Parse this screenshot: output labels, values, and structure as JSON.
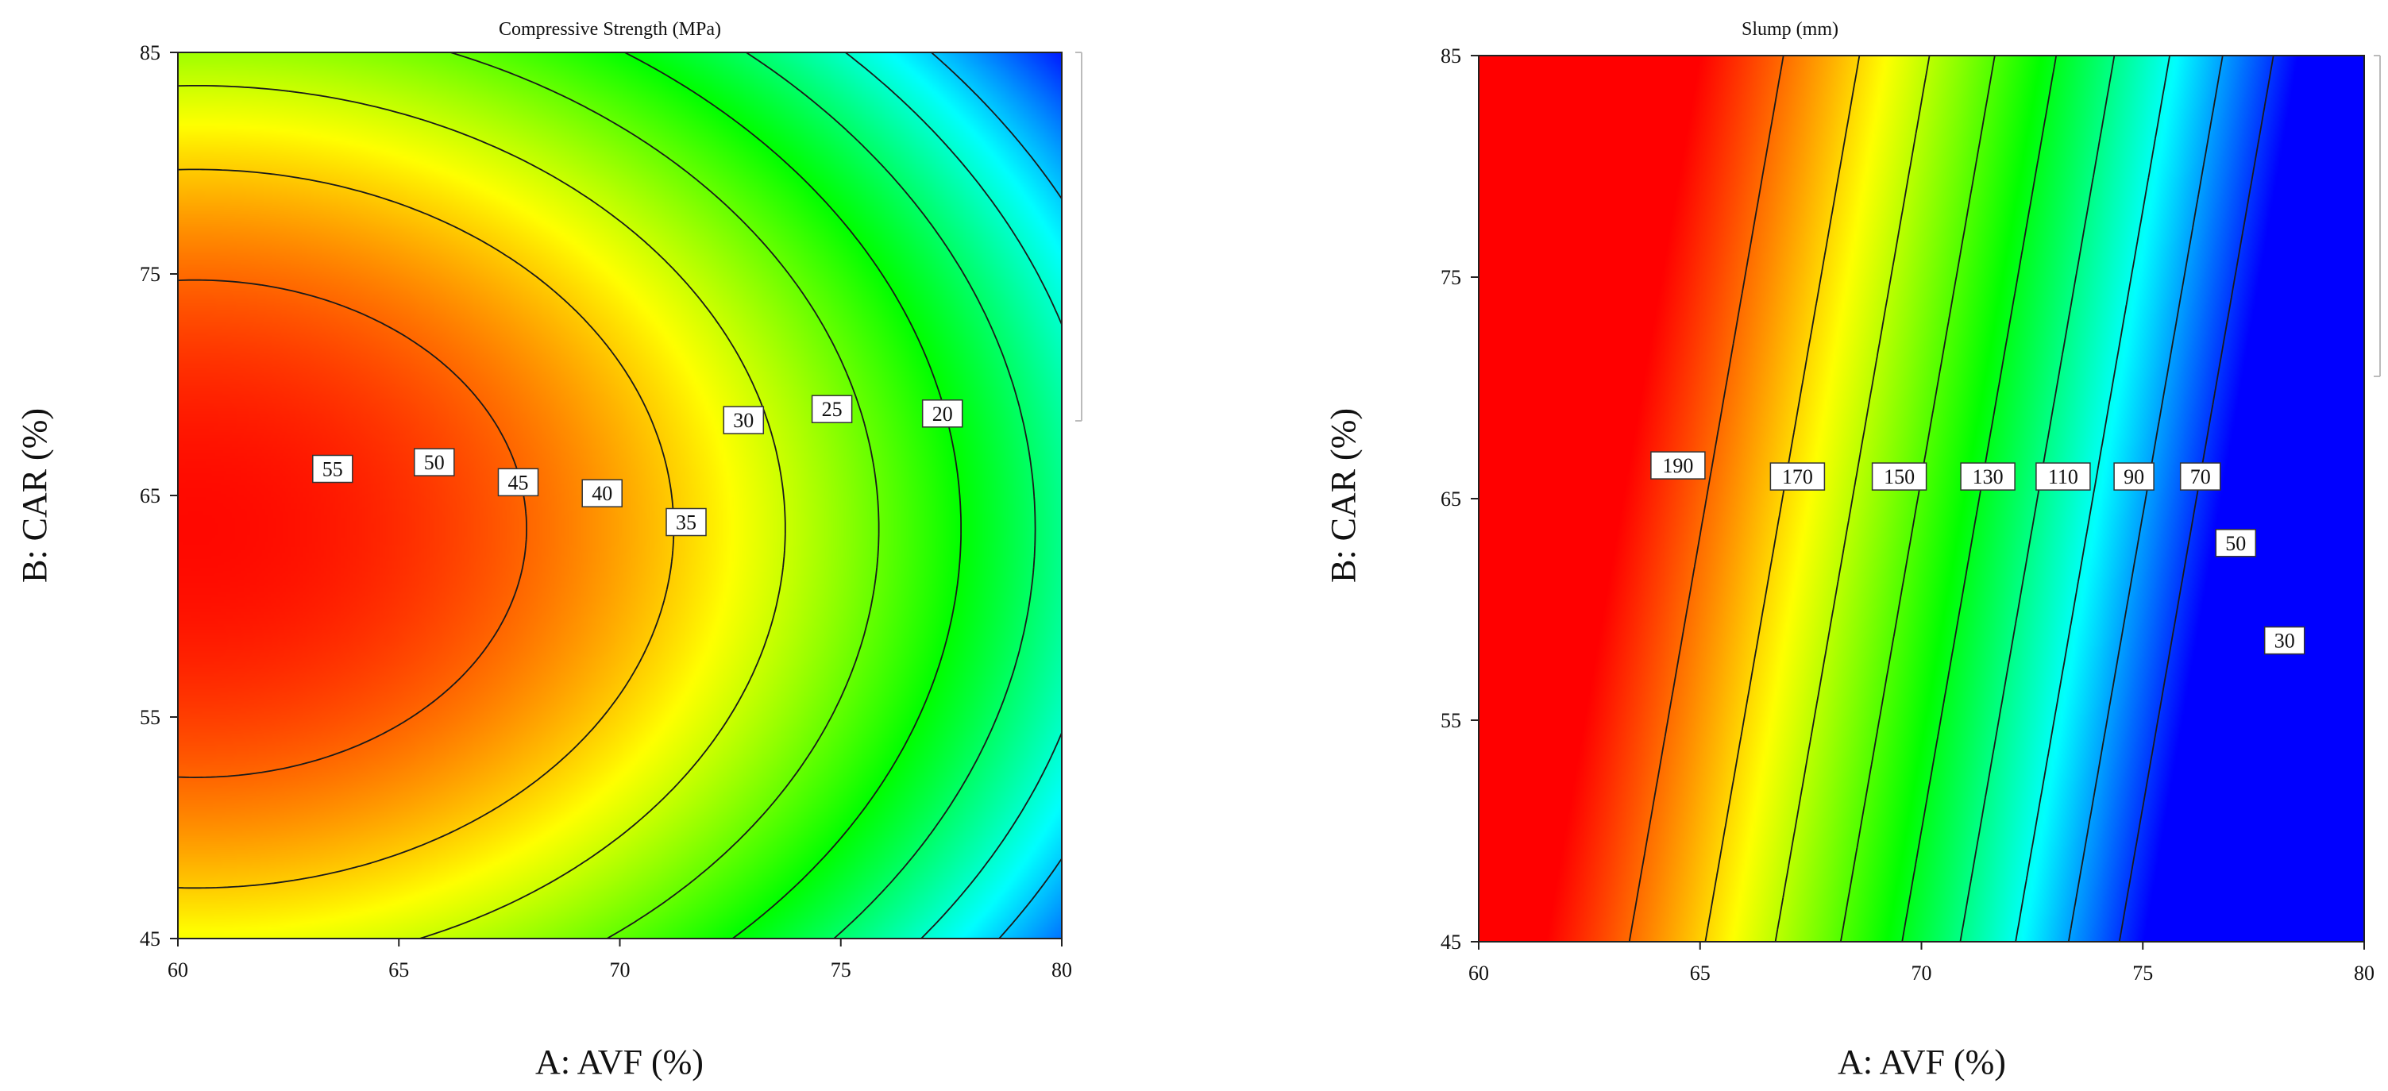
{
  "chart_data": [
    {
      "type": "contour",
      "title": "Compressive Strength (MPa)",
      "xlabel": "A: AVF (%)",
      "ylabel": "B: CAR (%)",
      "xlim": [
        60,
        80
      ],
      "ylim": [
        45,
        85
      ],
      "xticks": [
        "60",
        "65",
        "70",
        "75",
        "80"
      ],
      "yticks": [
        "45",
        "55",
        "65",
        "75",
        "85"
      ],
      "colorscale": "rainbow red-high",
      "zrange": [
        10,
        60
      ],
      "contour_levels": [
        55,
        50,
        45,
        40,
        35,
        30,
        25,
        20
      ],
      "labels": [
        {
          "text": "55",
          "x": 63.5,
          "y": 66.2
        },
        {
          "text": "50",
          "x": 65.8,
          "y": 66.5
        },
        {
          "text": "45",
          "x": 67.7,
          "y": 65.6
        },
        {
          "text": "40",
          "x": 69.6,
          "y": 65.1
        },
        {
          "text": "35",
          "x": 71.5,
          "y": 63.8
        },
        {
          "text": "30",
          "x": 72.8,
          "y": 68.4
        },
        {
          "text": "25",
          "x": 74.8,
          "y": 68.9
        },
        {
          "text": "20",
          "x": 77.3,
          "y": 68.7
        }
      ]
    },
    {
      "type": "contour",
      "title": "Slump (mm)",
      "xlabel": "A: AVF (%)",
      "ylabel": "B: CAR (%)",
      "xlim": [
        60,
        80
      ],
      "ylim": [
        45,
        85
      ],
      "xticks": [
        "60",
        "65",
        "70",
        "75",
        "80"
      ],
      "yticks": [
        "45",
        "55",
        "65",
        "75",
        "85"
      ],
      "colorscale": "rainbow red-high",
      "zrange": [
        20,
        210
      ],
      "contour_levels": [
        190,
        170,
        150,
        130,
        110,
        90,
        70,
        50,
        30
      ],
      "labels": [
        {
          "text": "190",
          "x": 64.5,
          "y": 66.5
        },
        {
          "text": "170",
          "x": 67.2,
          "y": 66.0
        },
        {
          "text": "150",
          "x": 69.5,
          "y": 66.0
        },
        {
          "text": "130",
          "x": 71.5,
          "y": 66.0
        },
        {
          "text": "110",
          "x": 73.2,
          "y": 66.0
        },
        {
          "text": "90",
          "x": 74.8,
          "y": 66.0
        },
        {
          "text": "70",
          "x": 76.3,
          "y": 66.0
        },
        {
          "text": "50",
          "x": 77.1,
          "y": 63.0
        },
        {
          "text": "30",
          "x": 78.2,
          "y": 58.6
        }
      ]
    }
  ]
}
